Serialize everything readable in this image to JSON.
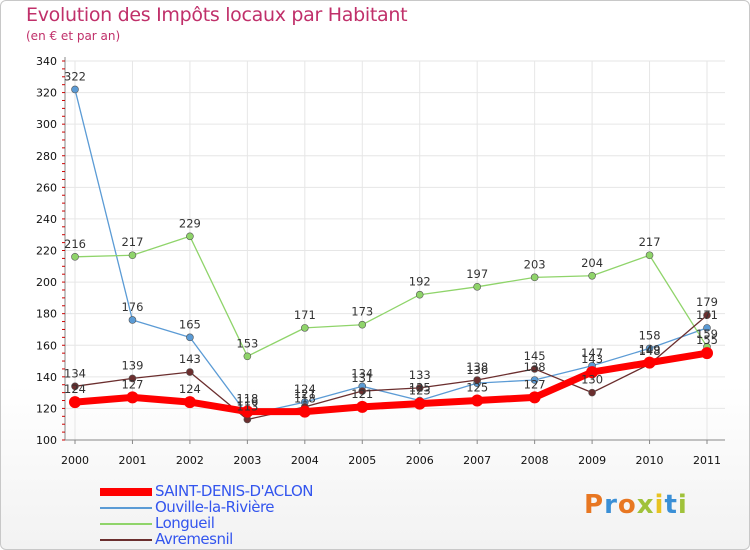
{
  "header": {
    "title": "Evolution des Impôts locaux par Habitant",
    "subtitle": "(en € et par an)"
  },
  "logo": {
    "text": "Proxiti",
    "colors": [
      "#e87722",
      "#3a8fd6",
      "#e87722",
      "#a0c23a",
      "#e8c322",
      "#3a8fd6",
      "#a0c23a"
    ]
  },
  "chart_data": {
    "type": "line",
    "title": "Evolution des Impôts locaux par Habitant",
    "subtitle": "(en € et par an)",
    "xlabel": "",
    "ylabel": "",
    "x": [
      "2000",
      "2001",
      "2002",
      "2003",
      "2004",
      "2005",
      "2006",
      "2007",
      "2008",
      "2009",
      "2010",
      "2011"
    ],
    "ylim": [
      100,
      340
    ],
    "yticks": [
      100,
      120,
      140,
      160,
      180,
      200,
      220,
      240,
      260,
      280,
      300,
      320,
      340
    ],
    "grid": true,
    "legend_position": "bottom-left",
    "series": [
      {
        "name": "SAINT-DENIS-D'ACLON",
        "color": "#ff0000",
        "values": [
          124,
          127,
          124,
          118,
          118,
          121,
          123,
          125,
          127,
          143,
          149,
          155
        ]
      },
      {
        "name": "Ouville-la-Rivière",
        "color": "#5b9bd5",
        "values": [
          322,
          176,
          165,
          116,
          124,
          134,
          125,
          136,
          138,
          147,
          158,
          171
        ]
      },
      {
        "name": "Longueil",
        "color": "#8fd46a",
        "values": [
          216,
          217,
          229,
          153,
          171,
          173,
          192,
          197,
          203,
          204,
          217,
          159
        ]
      },
      {
        "name": "Avremesnil",
        "color": "#6b2e2e",
        "values": [
          134,
          139,
          143,
          113,
          121,
          131,
          133,
          138,
          145,
          130,
          148,
          179
        ]
      }
    ]
  }
}
